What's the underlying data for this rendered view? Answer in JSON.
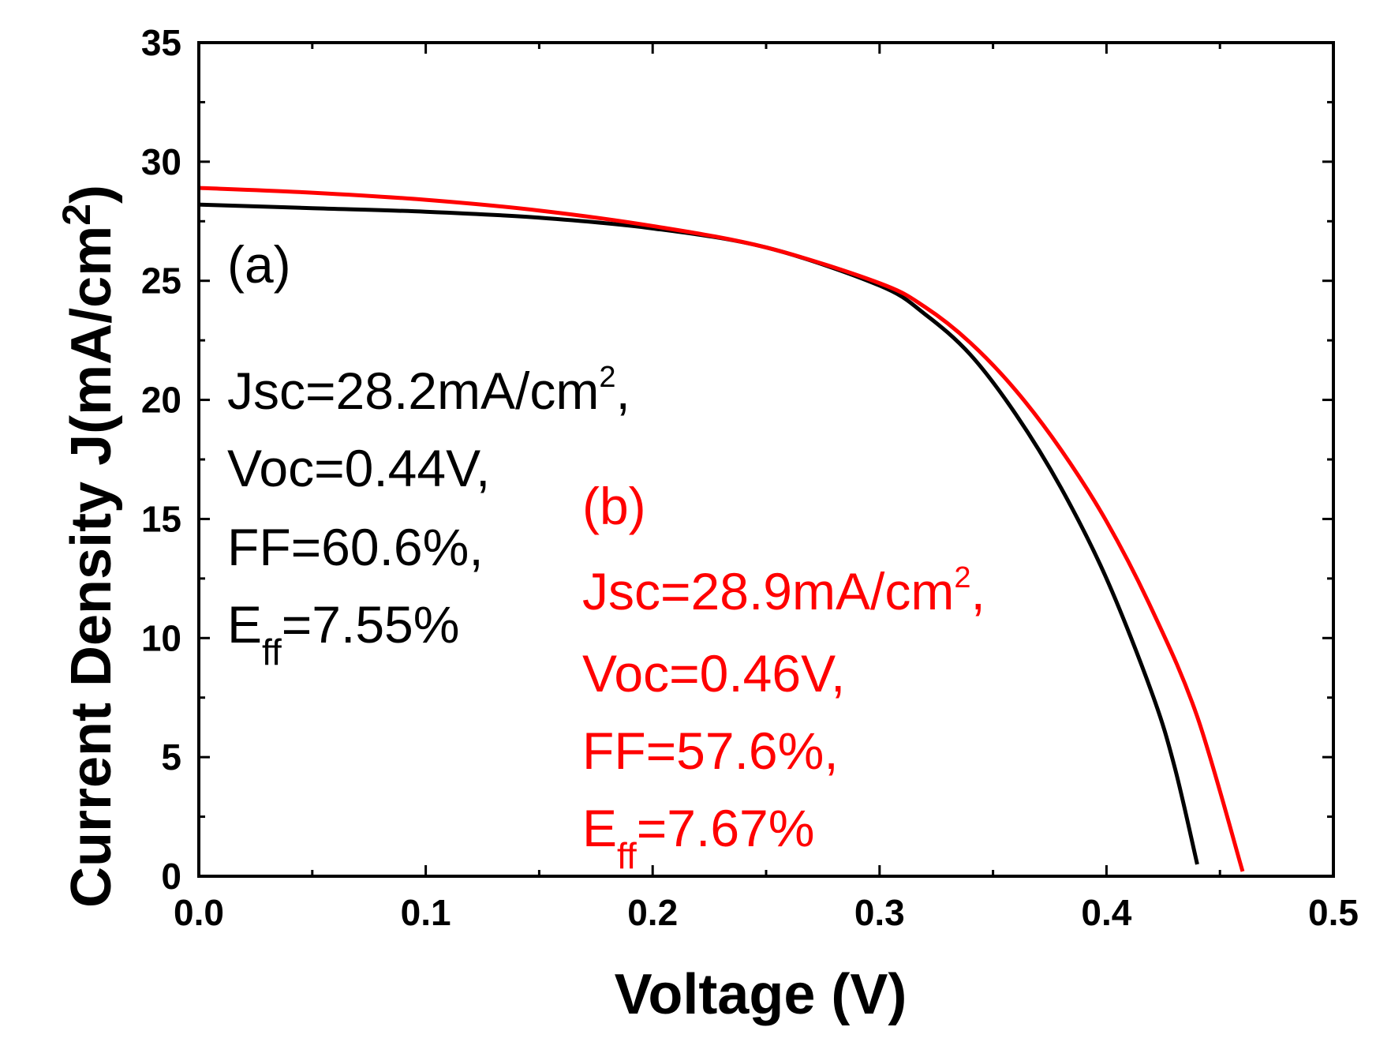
{
  "chart_data": {
    "type": "line",
    "xlabel": "Voltage (V)",
    "ylabel": {
      "base": "Current Density J(mA/cm",
      "sup": "2",
      "close": ")"
    },
    "xlim": [
      0.0,
      0.5
    ],
    "ylim": [
      0,
      35
    ],
    "xticks": [
      "0.0",
      "0.1",
      "0.2",
      "0.3",
      "0.4",
      "0.5"
    ],
    "yticks": [
      "0",
      "5",
      "10",
      "15",
      "20",
      "25",
      "30",
      "35"
    ],
    "grid": false,
    "colors": {
      "a": "#000000",
      "b": "#ff0000"
    },
    "series": [
      {
        "name": "(a)",
        "color": "#000000",
        "x": [
          0.0,
          0.05,
          0.1,
          0.15,
          0.2,
          0.25,
          0.3,
          0.32,
          0.34,
          0.36,
          0.38,
          0.4,
          0.42,
          0.43,
          0.44
        ],
        "y": [
          28.2,
          28.05,
          27.9,
          27.65,
          27.2,
          26.4,
          24.8,
          23.6,
          21.9,
          19.4,
          16.3,
          12.5,
          7.7,
          4.6,
          0.5
        ]
      },
      {
        "name": "(b)",
        "color": "#ff0000",
        "x": [
          0.0,
          0.05,
          0.1,
          0.15,
          0.2,
          0.25,
          0.3,
          0.32,
          0.34,
          0.36,
          0.38,
          0.4,
          0.42,
          0.44,
          0.46
        ],
        "y": [
          28.9,
          28.7,
          28.4,
          27.95,
          27.3,
          26.4,
          24.9,
          23.9,
          22.4,
          20.4,
          17.9,
          14.9,
          11.2,
          6.7,
          0.2
        ]
      }
    ],
    "annotations": {
      "a": {
        "label": "(a)",
        "jsc": "Jsc=28.2mA/cm",
        "jsc_sup": "2",
        "jsc_tail": ",",
        "voc": "Voc=0.44V,",
        "ff": "FF=60.6%,",
        "eff_e": "E",
        "eff_sub": "ff",
        "eff_val": "=7.55%"
      },
      "b": {
        "label": "(b)",
        "jsc": "Jsc=28.9mA/cm",
        "jsc_sup": "2",
        "jsc_tail": ",",
        "voc": "Voc=0.46V,",
        "ff": "FF=57.6%,",
        "eff_e": "E",
        "eff_sub": "ff",
        "eff_val": "=7.67%"
      }
    }
  }
}
